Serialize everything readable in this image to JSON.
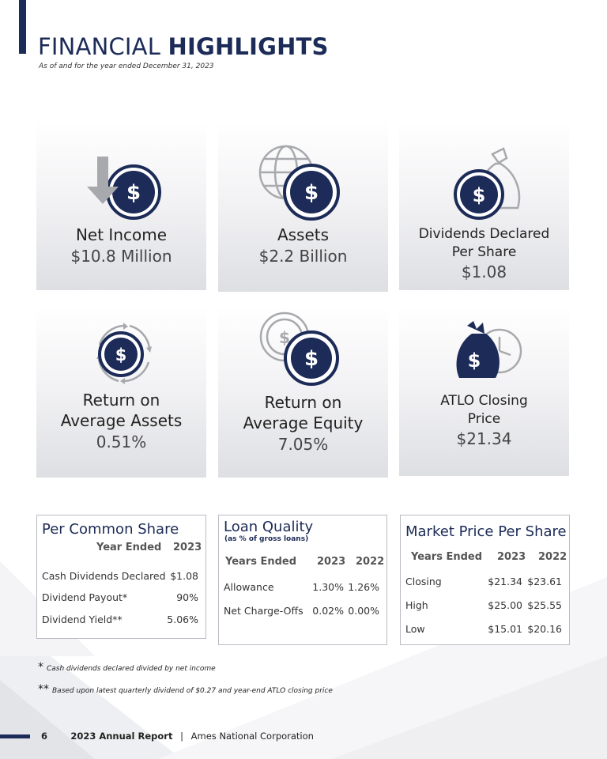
{
  "header": {
    "title_light": "FINANCIAL",
    "title_bold": "HIGHLIGHTS",
    "subtitle": "As of and for the year ended December 31, 2023"
  },
  "tiles": [
    {
      "label": "Net Income",
      "value": "$10.8 Million",
      "icon": "dollar-down-arrow-icon"
    },
    {
      "label": "Assets",
      "value": "$2.2 Billion",
      "icon": "dollar-globe-icon"
    },
    {
      "label_line1": "Dividends Declared",
      "label_line2": "Per Share",
      "value": "$1.08",
      "icon": "dollar-money-bag-icon"
    },
    {
      "label_line1": "Return on",
      "label_line2": "Average Assets",
      "value": "0.51%",
      "icon": "dollar-cycle-icon"
    },
    {
      "label_line1": "Return on",
      "label_line2": "Average Equity",
      "value": "7.05%",
      "icon": "dollar-coins-icon"
    },
    {
      "label_line1": "ATLO Closing",
      "label_line2": "Price",
      "value": "$21.34",
      "icon": "money-bag-clock-icon"
    }
  ],
  "per_common_share": {
    "title": "Per Common Share",
    "col_label": "Year Ended",
    "col_year": "2023",
    "rows": [
      {
        "label": "Cash Dividends Declared",
        "v2023": "$1.08"
      },
      {
        "label": "Dividend Payout*",
        "v2023": "90%"
      },
      {
        "label": "Dividend Yield**",
        "v2023": "5.06%"
      }
    ]
  },
  "loan_quality": {
    "title": "Loan Quality",
    "subtitle": "(as % of gross loans)",
    "col_label": "Years Ended",
    "col_2023": "2023",
    "col_2022": "2022",
    "rows": [
      {
        "label": "Allowance",
        "v2023": "1.30%",
        "v2022": "1.26%"
      },
      {
        "label": "Net Charge-Offs",
        "v2023": "0.02%",
        "v2022": "0.00%"
      }
    ]
  },
  "market_price": {
    "title": "Market Price Per Share",
    "col_label": "Years Ended",
    "col_2023": "2023",
    "col_2022": "2022",
    "rows": [
      {
        "label": "Closing",
        "v2023": "$21.34",
        "v2022": "$23.61"
      },
      {
        "label": "High",
        "v2023": "$25.00",
        "v2022": "$25.55"
      },
      {
        "label": "Low",
        "v2023": "$15.01",
        "v2022": "$20.16"
      }
    ]
  },
  "footnotes": [
    {
      "marker": "*",
      "text": "Cash dividends declared divided by net income"
    },
    {
      "marker": "**",
      "text": "Based upon latest quarterly dividend of $0.27 and year-end ATLO closing price"
    }
  ],
  "footer": {
    "page_number": "6",
    "report": "2023 Annual Report",
    "separator": "|",
    "company": "Ames National Corporation"
  },
  "colors": {
    "navy": "#1c2b57",
    "gray_icon": "#a7a9ad",
    "tile_gray": "#dedfe3"
  }
}
